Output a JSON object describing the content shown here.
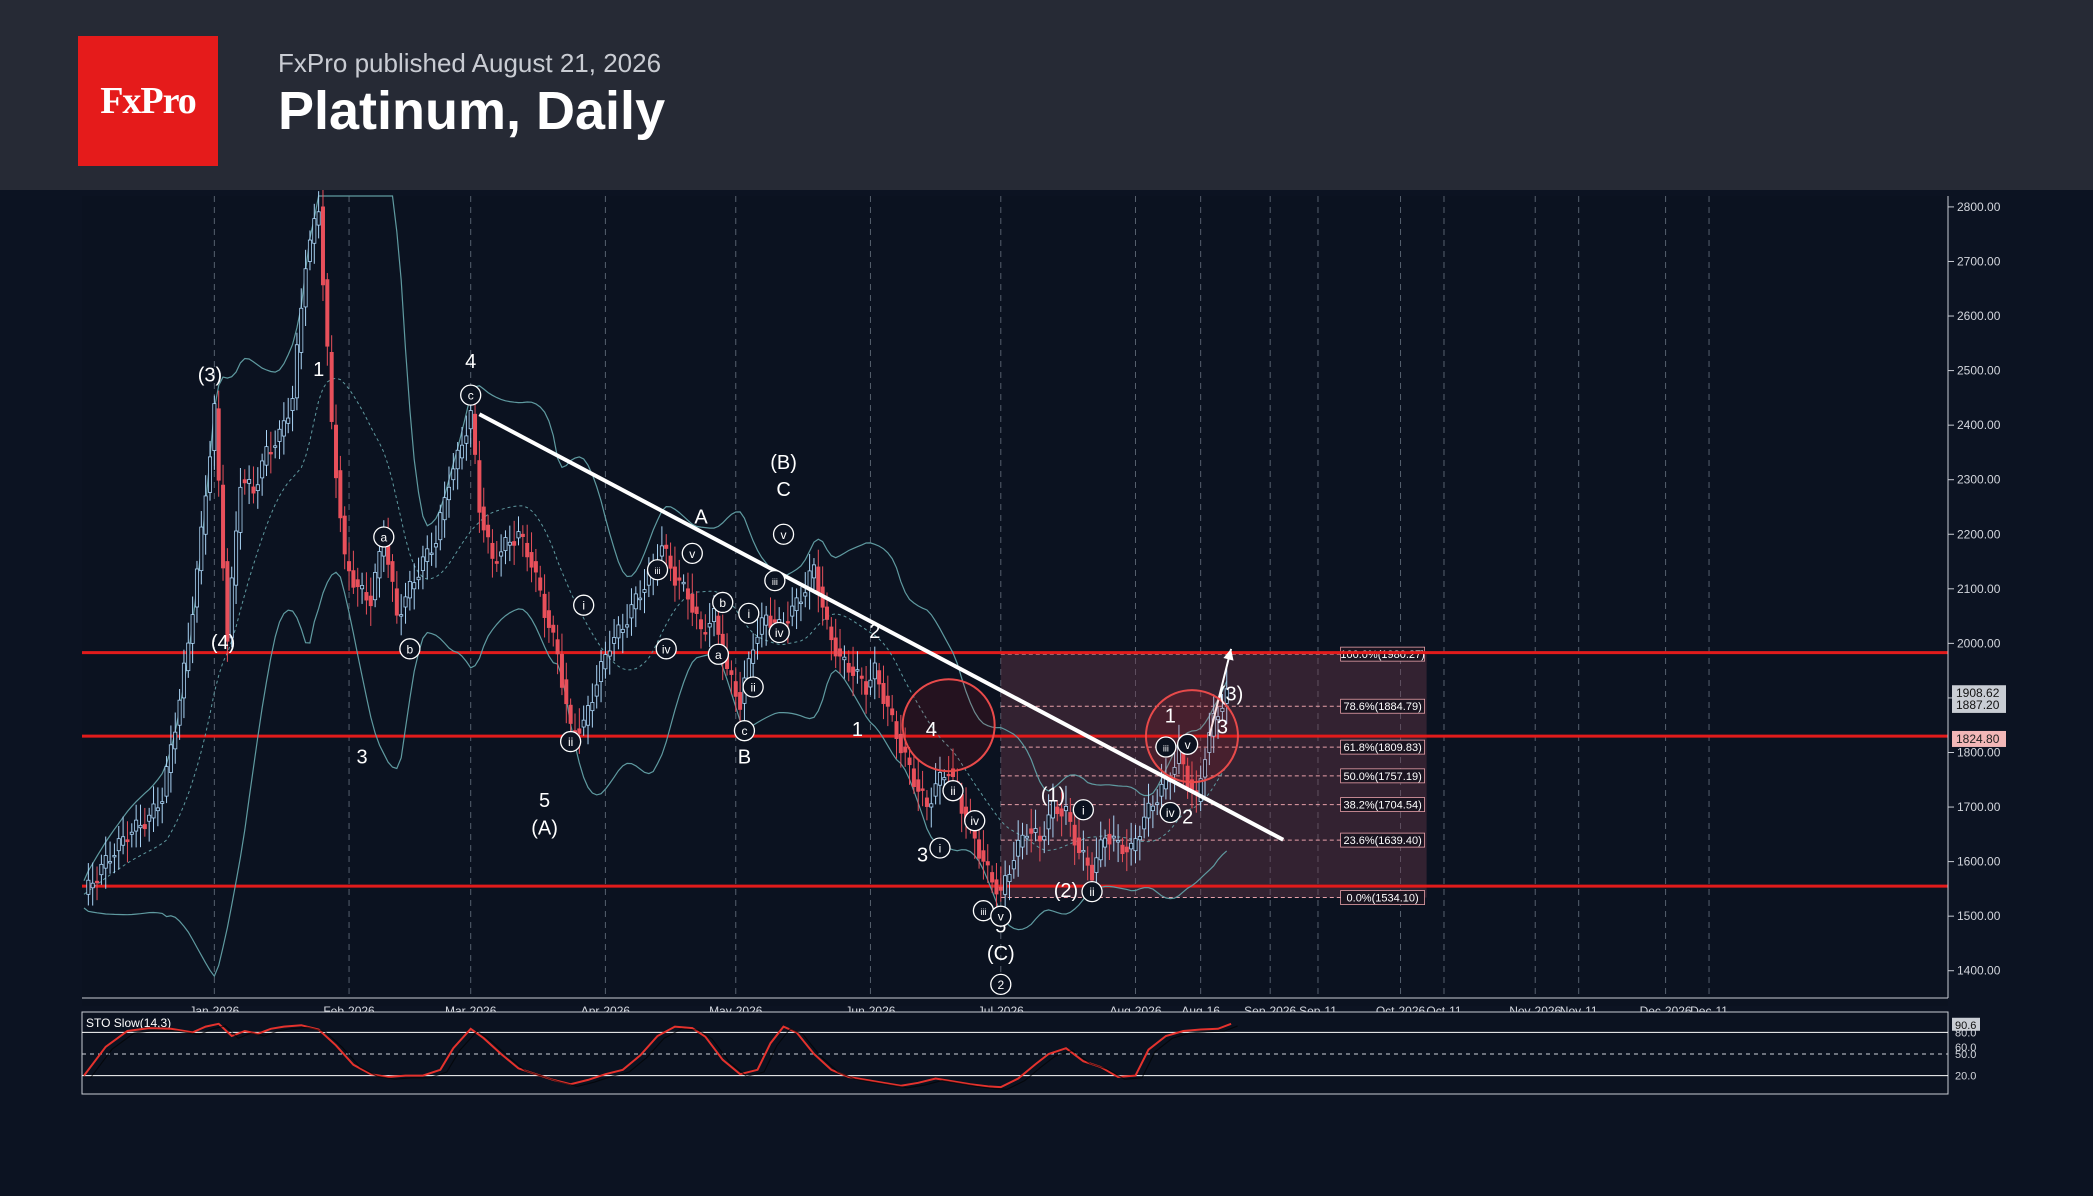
{
  "header": {
    "logo_text": "FxPro",
    "published": "FxPro published August 21, 2026",
    "title": "Platinum, Daily"
  },
  "colors": {
    "background": "#0c1322",
    "header": "#262a35",
    "brand": "#e51b1b",
    "bull_candle": "#aad4f5",
    "bear_candle": "#e8505b",
    "level_line": "#e21b1b",
    "trendline": "#ffffff",
    "bollinger": "#5f9aa0",
    "stochastic": "#e5322d"
  },
  "chart_data": {
    "type": "candlestick",
    "instrument": "Platinum",
    "timeframe": "Daily",
    "ylim": [
      1350,
      2820
    ],
    "y_ticks": [
      "2800.00",
      "2700.00",
      "2600.00",
      "2500.00",
      "2400.00",
      "2300.00",
      "2200.00",
      "2100.00",
      "2000.00",
      "1900.00",
      "1800.00",
      "1700.00",
      "1600.00",
      "1500.00",
      "1400.00"
    ],
    "x_ticks": [
      {
        "label": "Jan-2026",
        "day": 30
      },
      {
        "label": "Feb-2026",
        "day": 61
      },
      {
        "label": "Mar-2026",
        "day": 89
      },
      {
        "label": "Apr-2026",
        "day": 120
      },
      {
        "label": "May-2026",
        "day": 150
      },
      {
        "label": "Jun-2026",
        "day": 181
      },
      {
        "label": "Jul-2026",
        "day": 211
      },
      {
        "label": "Aug-2026",
        "day": 242
      },
      {
        "label": "Aug-16",
        "day": 257
      },
      {
        "label": "Sep-2026",
        "day": 273
      },
      {
        "label": "Sep-11",
        "day": 284
      },
      {
        "label": "Oct-2026",
        "day": 303
      },
      {
        "label": "Oct-11",
        "day": 313
      },
      {
        "label": "Nov-2026",
        "day": 334
      },
      {
        "label": "Nov-11",
        "day": 344
      },
      {
        "label": "Dec-2026",
        "day": 364
      },
      {
        "label": "Dec-11",
        "day": 374
      }
    ],
    "price_path": [
      [
        0,
        1540
      ],
      [
        5,
        1600
      ],
      [
        10,
        1650
      ],
      [
        15,
        1680
      ],
      [
        18,
        1720
      ],
      [
        21,
        1850
      ],
      [
        24,
        2000
      ],
      [
        27,
        2200
      ],
      [
        30,
        2430
      ],
      [
        33,
        2010
      ],
      [
        36,
        2300
      ],
      [
        39,
        2280
      ],
      [
        42,
        2350
      ],
      [
        45,
        2380
      ],
      [
        48,
        2450
      ],
      [
        51,
        2700
      ],
      [
        54,
        2800
      ],
      [
        57,
        2400
      ],
      [
        60,
        2150
      ],
      [
        63,
        2100
      ],
      [
        66,
        2080
      ],
      [
        69,
        2200
      ],
      [
        72,
        2050
      ],
      [
        75,
        2100
      ],
      [
        78,
        2150
      ],
      [
        81,
        2190
      ],
      [
        84,
        2300
      ],
      [
        86,
        2340
      ],
      [
        89,
        2420
      ],
      [
        91,
        2250
      ],
      [
        94,
        2150
      ],
      [
        97,
        2180
      ],
      [
        100,
        2200
      ],
      [
        103,
        2150
      ],
      [
        106,
        2060
      ],
      [
        109,
        1980
      ],
      [
        112,
        1840
      ],
      [
        115,
        1850
      ],
      [
        118,
        1930
      ],
      [
        121,
        2000
      ],
      [
        124,
        2030
      ],
      [
        127,
        2080
      ],
      [
        130,
        2120
      ],
      [
        133,
        2180
      ],
      [
        136,
        2120
      ],
      [
        139,
        2090
      ],
      [
        142,
        2020
      ],
      [
        145,
        2050
      ],
      [
        148,
        1950
      ],
      [
        151,
        1890
      ],
      [
        154,
        2000
      ],
      [
        157,
        2050
      ],
      [
        160,
        2030
      ],
      [
        163,
        2060
      ],
      [
        166,
        2100
      ],
      [
        168,
        2140
      ],
      [
        171,
        2030
      ],
      [
        174,
        1970
      ],
      [
        177,
        1950
      ],
      [
        180,
        1920
      ],
      [
        182,
        1950
      ],
      [
        185,
        1880
      ],
      [
        188,
        1810
      ],
      [
        191,
        1750
      ],
      [
        194,
        1700
      ],
      [
        196,
        1740
      ],
      [
        199,
        1770
      ],
      [
        202,
        1700
      ],
      [
        205,
        1640
      ],
      [
        208,
        1580
      ],
      [
        211,
        1540
      ],
      [
        214,
        1610
      ],
      [
        217,
        1660
      ],
      [
        220,
        1640
      ],
      [
        223,
        1700
      ],
      [
        226,
        1690
      ],
      [
        229,
        1620
      ],
      [
        232,
        1580
      ],
      [
        235,
        1650
      ],
      [
        238,
        1630
      ],
      [
        241,
        1620
      ],
      [
        244,
        1680
      ],
      [
        247,
        1720
      ],
      [
        250,
        1760
      ],
      [
        252,
        1800
      ],
      [
        254,
        1750
      ],
      [
        256,
        1710
      ],
      [
        258,
        1800
      ],
      [
        260,
        1860
      ],
      [
        262,
        1890
      ],
      [
        263,
        1905
      ]
    ],
    "last_prices": [
      "1908.62",
      "1887.20"
    ],
    "level_marker": "1824.80",
    "horizontal_levels": [
      1983,
      1830,
      1555
    ],
    "trendline": {
      "from": [
        91,
        2420
      ],
      "to": [
        276,
        1640
      ]
    },
    "projection_arrow": {
      "from": [
        259,
        1830
      ],
      "to": [
        264,
        1990
      ]
    },
    "fib_box": {
      "day_start": 211,
      "day_end": 309,
      "high": 1980.27,
      "low": 1534.1
    },
    "fibonacci": [
      {
        "label": "100.0%(1980.27)",
        "value": 1980.27
      },
      {
        "label": "78.6%(1884.79)",
        "value": 1884.79
      },
      {
        "label": "61.8%(1809.83)",
        "value": 1809.83
      },
      {
        "label": "50.0%(1757.19)",
        "value": 1757.19
      },
      {
        "label": "38.2%(1704.54)",
        "value": 1704.54
      },
      {
        "label": "23.6%(1639.40)",
        "value": 1639.4
      },
      {
        "label": "0.0%(1534.10)",
        "value": 1534.1
      }
    ],
    "highlight_circles": [
      {
        "day": 199,
        "price": 1850
      },
      {
        "day": 255,
        "price": 1830
      }
    ],
    "wave_labels": [
      {
        "text": "(3)",
        "day": 29,
        "price": 2480
      },
      {
        "text": "(4)",
        "day": 32,
        "price": 1990
      },
      {
        "text": "1",
        "day": 54,
        "price": 2490
      },
      {
        "text": "3",
        "day": 64,
        "price": 1780
      },
      {
        "text": "4",
        "day": 89,
        "price": 2505
      },
      {
        "text": "5",
        "day": 106,
        "price": 1700
      },
      {
        "text": "(A)",
        "day": 106,
        "price": 1650
      },
      {
        "text": "A",
        "day": 142,
        "price": 2220
      },
      {
        "text": "B",
        "day": 152,
        "price": 1780
      },
      {
        "text": "(B)",
        "day": 161,
        "price": 2320
      },
      {
        "text": "C",
        "day": 161,
        "price": 2270
      },
      {
        "text": "2",
        "day": 182,
        "price": 2010
      },
      {
        "text": "1",
        "day": 178,
        "price": 1830
      },
      {
        "text": "4",
        "day": 195,
        "price": 1830
      },
      {
        "text": "3",
        "day": 193,
        "price": 1600
      },
      {
        "text": "5",
        "day": 211,
        "price": 1470
      },
      {
        "text": "(C)",
        "day": 211,
        "price": 1420
      },
      {
        "text": "(1)",
        "day": 223,
        "price": 1710
      },
      {
        "text": "(2)",
        "day": 226,
        "price": 1535
      },
      {
        "text": "1",
        "day": 250,
        "price": 1855
      },
      {
        "text": "2",
        "day": 254,
        "price": 1670
      },
      {
        "text": "3",
        "day": 262,
        "price": 1835
      },
      {
        "text": "(3)",
        "day": 264,
        "price": 1895
      }
    ],
    "circled_labels": [
      {
        "text": "c",
        "day": 89,
        "price": 2455
      },
      {
        "text": "a",
        "day": 69,
        "price": 2195
      },
      {
        "text": "b",
        "day": 75,
        "price": 1990
      },
      {
        "text": "i",
        "day": 115,
        "price": 2070
      },
      {
        "text": "ii",
        "day": 112,
        "price": 1820
      },
      {
        "text": "iii",
        "day": 132,
        "price": 2135
      },
      {
        "text": "iv",
        "day": 134,
        "price": 1990
      },
      {
        "text": "v",
        "day": 140,
        "price": 2165
      },
      {
        "text": "a",
        "day": 146,
        "price": 1980
      },
      {
        "text": "b",
        "day": 147,
        "price": 2075
      },
      {
        "text": "c",
        "day": 152,
        "price": 1840
      },
      {
        "text": "i",
        "day": 153,
        "price": 2055
      },
      {
        "text": "ii",
        "day": 154,
        "price": 1920
      },
      {
        "text": "iii",
        "day": 159,
        "price": 2115
      },
      {
        "text": "iv",
        "day": 160,
        "price": 2020
      },
      {
        "text": "v",
        "day": 161,
        "price": 2200
      },
      {
        "text": "i",
        "day": 197,
        "price": 1625
      },
      {
        "text": "ii",
        "day": 200,
        "price": 1730
      },
      {
        "text": "iii",
        "day": 207,
        "price": 1510
      },
      {
        "text": "iv",
        "day": 205,
        "price": 1675
      },
      {
        "text": "v",
        "day": 211,
        "price": 1500
      },
      {
        "text": "2",
        "day": 211,
        "price": 1375
      },
      {
        "text": "i",
        "day": 230,
        "price": 1695
      },
      {
        "text": "ii",
        "day": 232,
        "price": 1545
      },
      {
        "text": "iii",
        "day": 249,
        "price": 1810
      },
      {
        "text": "iv",
        "day": 250,
        "price": 1690
      },
      {
        "text": "v",
        "day": 254,
        "price": 1815
      }
    ],
    "stochastic": {
      "label": "STO Slow(14,3)",
      "ticks": [
        "90.6",
        "80.0",
        "60.0",
        "50.0",
        "20.0"
      ],
      "levels": [
        80,
        50,
        20
      ],
      "values": [
        [
          0,
          20
        ],
        [
          5,
          60
        ],
        [
          10,
          82
        ],
        [
          15,
          86
        ],
        [
          20,
          85
        ],
        [
          25,
          80
        ],
        [
          28,
          88
        ],
        [
          31,
          92
        ],
        [
          34,
          75
        ],
        [
          37,
          82
        ],
        [
          40,
          78
        ],
        [
          43,
          85
        ],
        [
          46,
          88
        ],
        [
          50,
          90
        ],
        [
          54,
          84
        ],
        [
          58,
          62
        ],
        [
          62,
          35
        ],
        [
          66,
          22
        ],
        [
          70,
          18
        ],
        [
          74,
          20
        ],
        [
          78,
          20
        ],
        [
          82,
          28
        ],
        [
          85,
          58
        ],
        [
          89,
          85
        ],
        [
          92,
          72
        ],
        [
          96,
          50
        ],
        [
          100,
          30
        ],
        [
          104,
          22
        ],
        [
          108,
          14
        ],
        [
          112,
          8
        ],
        [
          116,
          14
        ],
        [
          120,
          22
        ],
        [
          124,
          28
        ],
        [
          128,
          48
        ],
        [
          132,
          75
        ],
        [
          136,
          88
        ],
        [
          140,
          86
        ],
        [
          143,
          74
        ],
        [
          147,
          42
        ],
        [
          151,
          22
        ],
        [
          155,
          28
        ],
        [
          158,
          65
        ],
        [
          161,
          88
        ],
        [
          164,
          80
        ],
        [
          168,
          50
        ],
        [
          172,
          28
        ],
        [
          176,
          18
        ],
        [
          180,
          14
        ],
        [
          184,
          10
        ],
        [
          188,
          6
        ],
        [
          192,
          10
        ],
        [
          196,
          16
        ],
        [
          200,
          12
        ],
        [
          204,
          8
        ],
        [
          208,
          5
        ],
        [
          211,
          4
        ],
        [
          215,
          16
        ],
        [
          219,
          36
        ],
        [
          222,
          50
        ],
        [
          226,
          58
        ],
        [
          230,
          40
        ],
        [
          234,
          32
        ],
        [
          238,
          18
        ],
        [
          242,
          20
        ],
        [
          245,
          56
        ],
        [
          249,
          75
        ],
        [
          253,
          82
        ],
        [
          257,
          84
        ],
        [
          261,
          85
        ],
        [
          264,
          92
        ]
      ]
    }
  }
}
